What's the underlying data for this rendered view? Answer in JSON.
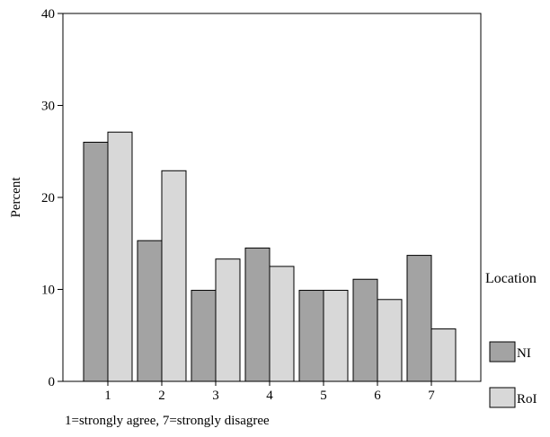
{
  "chart_data": {
    "type": "bar",
    "categories": [
      "1",
      "2",
      "3",
      "4",
      "5",
      "6",
      "7"
    ],
    "series": [
      {
        "name": "NI",
        "values": [
          26.0,
          15.3,
          9.9,
          14.5,
          9.9,
          11.1,
          13.7
        ]
      },
      {
        "name": "RoI",
        "values": [
          27.1,
          22.9,
          13.3,
          12.5,
          9.9,
          8.9,
          5.7
        ]
      }
    ],
    "title": "",
    "xlabel": "1=strongly agree, 7=strongly disagree",
    "ylabel": "Percent",
    "ylim": [
      0,
      40
    ],
    "yticks": [
      0,
      10,
      20,
      30,
      40
    ],
    "legend": {
      "title": "Location",
      "placement": "right",
      "items": [
        "NI",
        "RoI"
      ]
    },
    "grid": false,
    "colors": {
      "NI": "#a3a3a3",
      "RoI": "#d8d8d8"
    }
  }
}
